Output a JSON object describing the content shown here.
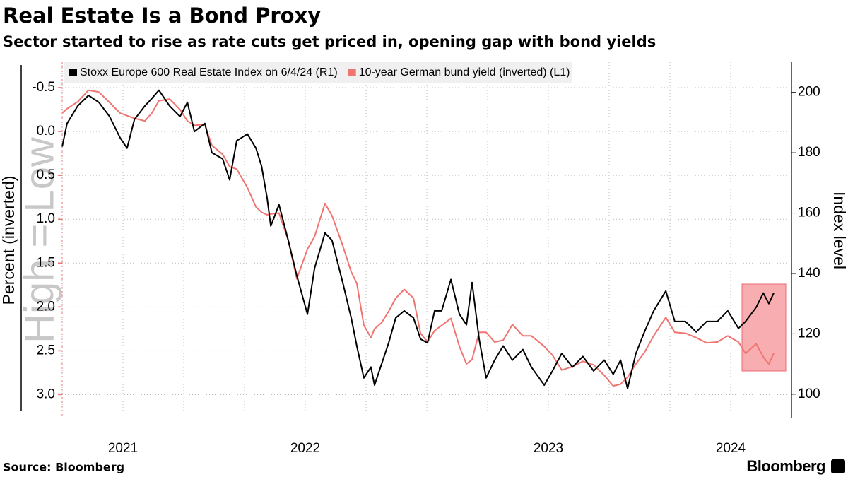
{
  "chart_data": {
    "type": "line",
    "title": "Real Estate Is a Bond Proxy",
    "subtitle": "Sector started to rise as rate cuts get priced in, opening gap with bond yields",
    "ylabel": "Percent (inverted)",
    "y2label": "Index level",
    "annotation": "High = Low",
    "source": "Source: Bloomberg",
    "brand": "Bloomberg",
    "x": [
      2021.5,
      2021.52,
      2021.564,
      2021.608,
      2021.651,
      2021.695,
      2021.738,
      2021.767,
      2021.797,
      2021.84,
      2021.869,
      2021.898,
      2021.942,
      2021.985,
      2022.015,
      2022.044,
      2022.087,
      2022.116,
      2022.16,
      2022.189,
      2022.218,
      2022.262,
      2022.297,
      2022.32,
      2022.343,
      2022.358,
      2022.392,
      2022.43,
      2022.465,
      2022.509,
      2022.538,
      2022.581,
      2022.61,
      2022.654,
      2022.689,
      2022.712,
      2022.741,
      2022.77,
      2022.785,
      2022.814,
      2022.843,
      2022.872,
      2022.907,
      2022.945,
      2022.974,
      2023.003,
      2023.032,
      2023.061,
      2023.099,
      2023.134,
      2023.163,
      2023.186,
      2023.215,
      2023.244,
      2023.279,
      2023.314,
      2023.352,
      2023.395,
      2023.43,
      2023.483,
      2023.517,
      2023.555,
      2023.599,
      2023.642,
      2023.686,
      2023.73,
      2023.767,
      2023.797,
      2023.826,
      2023.86,
      2023.895,
      2023.933,
      2023.983,
      2024.02,
      2024.064,
      2024.108,
      2024.151,
      2024.195,
      2024.238,
      2024.282,
      2024.311,
      2024.355,
      2024.384,
      2024.407,
      2024.427
    ],
    "series": [
      {
        "name": "Stoxx Europe 600 Real Estate Index on 6/4/24 (R1)",
        "color": "#000000",
        "axis": "y2",
        "values": [
          182,
          189.7,
          195.5,
          199,
          196.7,
          192,
          185,
          181.5,
          191,
          195.5,
          198,
          200.7,
          195.5,
          192,
          196.7,
          187,
          189.7,
          180,
          178,
          171,
          184,
          186.2,
          181.5,
          175.6,
          165,
          155.7,
          162.8,
          151,
          139.3,
          126.5,
          141.7,
          153.4,
          151,
          137,
          125.3,
          116,
          105.4,
          109,
          103,
          110,
          117,
          125.3,
          127.6,
          125.3,
          118.3,
          117,
          127.6,
          127.6,
          138,
          126.5,
          123,
          137,
          118.3,
          105.4,
          111.3,
          116,
          111.3,
          114.8,
          109,
          103,
          107.7,
          113.5,
          109,
          112.5,
          107.7,
          111.3,
          106.6,
          111.3,
          101.9,
          113.5,
          120.6,
          127.6,
          134.2,
          124.1,
          124.1,
          120.6,
          124.1,
          124.1,
          127.6,
          121.8,
          124.1,
          128.8,
          133.5,
          130,
          133.5
        ]
      },
      {
        "name": "10-year German bund yield (inverted) (L1)",
        "color": "#f07470",
        "axis": "y",
        "values": [
          -0.21,
          -0.26,
          -0.34,
          -0.47,
          -0.45,
          -0.33,
          -0.21,
          -0.18,
          -0.15,
          -0.12,
          -0.21,
          -0.35,
          -0.37,
          -0.25,
          -0.12,
          -0.07,
          -0.08,
          0.16,
          0.26,
          0.4,
          0.43,
          0.64,
          0.86,
          0.92,
          0.95,
          0.94,
          0.93,
          1.24,
          1.68,
          1.34,
          1.2,
          0.82,
          0.96,
          1.3,
          1.6,
          1.73,
          2.21,
          2.35,
          2.25,
          2.18,
          2.05,
          1.9,
          1.8,
          1.9,
          2.3,
          2.4,
          2.27,
          2.21,
          2.13,
          2.45,
          2.65,
          2.6,
          2.29,
          2.29,
          2.4,
          2.38,
          2.2,
          2.33,
          2.33,
          2.45,
          2.55,
          2.72,
          2.68,
          2.62,
          2.66,
          2.78,
          2.9,
          2.88,
          2.8,
          2.65,
          2.52,
          2.33,
          2.12,
          2.29,
          2.3,
          2.35,
          2.41,
          2.4,
          2.33,
          2.4,
          2.53,
          2.42,
          2.57,
          2.65,
          2.53
        ]
      }
    ],
    "xlim": [
      2021.5,
      2024.5
    ],
    "xticks": [
      {
        "value": 2021.75,
        "label": "2021"
      },
      {
        "value": 2022.5,
        "label": "2022"
      },
      {
        "value": 2023.5,
        "label": "2023"
      },
      {
        "value": 2024.25,
        "label": "2024"
      }
    ],
    "ylim": [
      -0.79,
      3.27
    ],
    "y_inverted": true,
    "yticks": [
      -0.5,
      {
        "value": 0,
        "label": "0.0"
      },
      0.5,
      {
        "value": 1,
        "label": "1.0"
      },
      1.5,
      {
        "value": 2,
        "label": "2.0"
      },
      2.5,
      {
        "value": 3,
        "label": "3.0"
      }
    ],
    "y2lim": [
      92,
      210
    ],
    "y2ticks": [
      100,
      120,
      140,
      160,
      180,
      200
    ],
    "grid": true,
    "legend": "top-left"
  }
}
